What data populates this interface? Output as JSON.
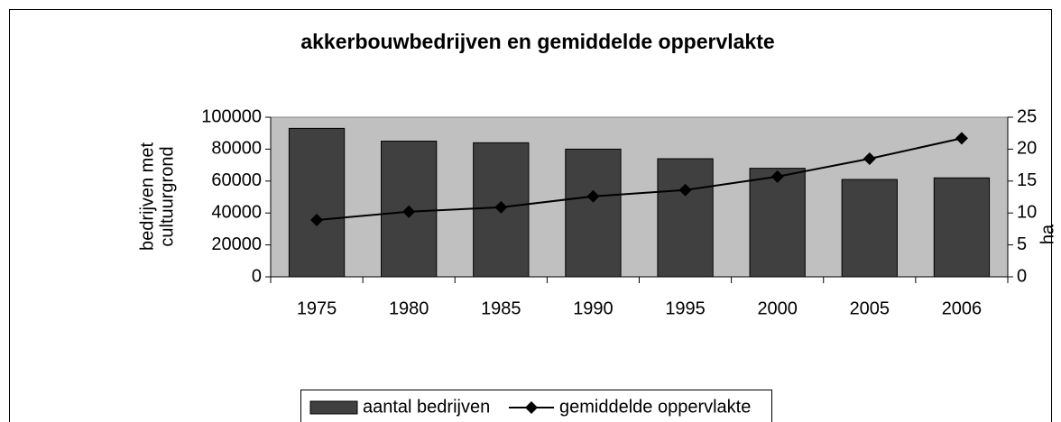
{
  "chart_data": {
    "type": "bar",
    "title": "akkerbouwbedrijven en gemiddelde oppervlakte",
    "ylabel": [
      "bedrijven met",
      "cultuurgrond"
    ],
    "y2label": "ha",
    "categories": [
      "1975",
      "1980",
      "1985",
      "1990",
      "1995",
      "2000",
      "2005",
      "2006"
    ],
    "series": [
      {
        "name": "aantal bedrijven",
        "type": "bar",
        "color": "#404040",
        "values": [
          93000,
          85000,
          84000,
          80000,
          74000,
          68000,
          61000,
          62000
        ]
      },
      {
        "name": "gemiddelde oppervlakte",
        "type": "line",
        "axis": "y2",
        "color": "#000000",
        "values": [
          8.9,
          10.2,
          10.9,
          12.6,
          13.6,
          15.7,
          18.5,
          21.7
        ]
      }
    ],
    "ylim": [
      0,
      100000
    ],
    "yticks": [
      0,
      20000,
      40000,
      60000,
      80000,
      100000
    ],
    "y2lim": [
      0,
      25
    ],
    "y2ticks": [
      0,
      5,
      10,
      15,
      20,
      25
    ],
    "plot_background": "#c0c0c0",
    "legend": "bottom"
  }
}
